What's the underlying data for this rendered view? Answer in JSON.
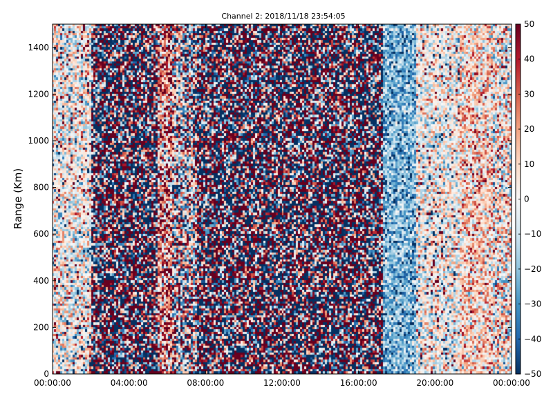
{
  "chart_data": {
    "type": "heatmap",
    "title": "Channel 2: 2018/11/18 23:54:05",
    "xlabel": "",
    "ylabel": "Range (Km)",
    "x_ticks": [
      "00:00:00",
      "04:00:00",
      "08:00:00",
      "12:00:00",
      "16:00:00",
      "20:00:00",
      "00:00:00"
    ],
    "y_ticks": [
      "0",
      "200",
      "400",
      "600",
      "800",
      "1000",
      "1200",
      "1400"
    ],
    "xlim_hours": [
      0,
      24
    ],
    "ylim": [
      0,
      1500
    ],
    "colorbar": {
      "range": [
        -50,
        50
      ],
      "ticks": [
        "50",
        "40",
        "30",
        "20",
        "10",
        "0",
        "−10",
        "−20",
        "−30",
        "−40",
        "−50"
      ],
      "colormap": "RdBu_r"
    },
    "value_bands": [
      {
        "from_hour": 0.0,
        "to_hour": 2.1,
        "mean": 0,
        "noise": 22,
        "note": "light mixed"
      },
      {
        "from_hour": 2.1,
        "to_hour": 5.5,
        "mean": 0,
        "noise": 95,
        "note": "saturated noise"
      },
      {
        "from_hour": 5.5,
        "to_hour": 6.3,
        "mean": 20,
        "noise": 35,
        "note": "warm stripe"
      },
      {
        "from_hour": 6.3,
        "to_hour": 7.6,
        "mean": 0,
        "noise": 45,
        "note": "lighter noise"
      },
      {
        "from_hour": 7.6,
        "to_hour": 17.3,
        "mean": 0,
        "noise": 95,
        "note": "saturated noise"
      },
      {
        "from_hour": 17.3,
        "to_hour": 19.0,
        "mean": -22,
        "noise": 16,
        "note": "blue stripe"
      },
      {
        "from_hour": 19.0,
        "to_hour": 21.3,
        "mean": 0,
        "noise": 20,
        "note": "light mixed"
      },
      {
        "from_hour": 21.3,
        "to_hour": 23.0,
        "mean": 10,
        "noise": 22,
        "note": "warm tint"
      },
      {
        "from_hour": 23.0,
        "to_hour": 24.0,
        "mean": 3,
        "noise": 28,
        "note": "mixed"
      }
    ]
  }
}
